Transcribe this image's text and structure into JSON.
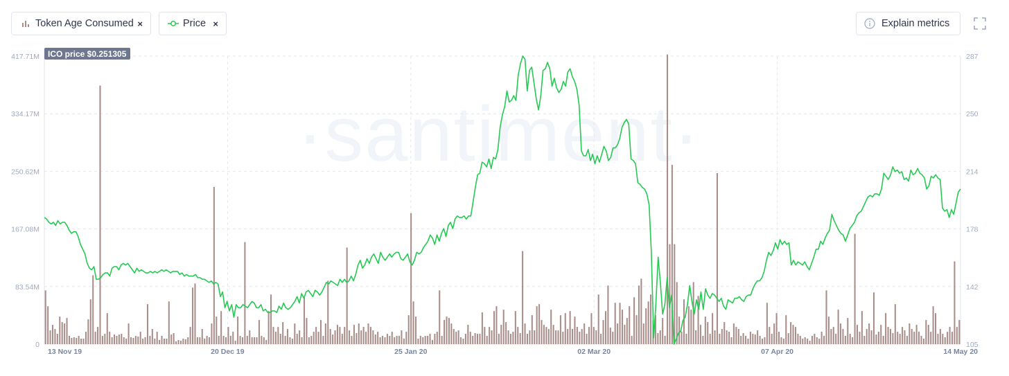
{
  "chips": [
    {
      "label": "Token Age Consumed",
      "icon": "bar-chart-icon",
      "color": "#a88d89"
    },
    {
      "label": "Price",
      "icon": "line-dot-icon",
      "color": "#26c953"
    }
  ],
  "remove_symbol": "×",
  "explain_button": {
    "label": "Explain metrics",
    "icon": "info-icon"
  },
  "fullscreen_icon": "fullscreen-icon",
  "watermark": "·santiment·",
  "ico_label": "ICO price $0.251305",
  "colors": {
    "bars": "#a88d89",
    "line": "#26c953",
    "grid": "#e4e8ef",
    "badge": "#6e7690"
  },
  "chart_data": {
    "type": "bar+line",
    "x_ticks": [
      "13 Nov 19",
      "20 Dec 19",
      "25 Jan 20",
      "02 Mar 20",
      "07 Apr 20",
      "14 May 20"
    ],
    "y_left_ticks": [
      "0",
      "83.54M",
      "167.08M",
      "250.62M",
      "334.17M",
      "417.71M"
    ],
    "y_right_ticks": [
      "105",
      "142",
      "178",
      "214",
      "250",
      "287"
    ],
    "y_left_range": [
      0,
      417.71
    ],
    "y_right_range": [
      105,
      287
    ],
    "grid": true,
    "series": [
      {
        "name": "Token Age Consumed",
        "type": "bar",
        "axis": "left",
        "unit": "M",
        "values": [
          78,
          55,
          20,
          28,
          22,
          15,
          40,
          32,
          30,
          38,
          12,
          9,
          10,
          9,
          12,
          8,
          8,
          18,
          36,
          65,
          100,
          18,
          25,
          375,
          12,
          15,
          45,
          18,
          10,
          14,
          12,
          14,
          15,
          10,
          8,
          30,
          10,
          9,
          12,
          11,
          18,
          8,
          10,
          58,
          12,
          22,
          8,
          18,
          6,
          12,
          8,
          8,
          62,
          14,
          16,
          4,
          6,
          5,
          8,
          7,
          10,
          25,
          82,
          88,
          10,
          10,
          22,
          8,
          12,
          10,
          30,
          228,
          40,
          12,
          48,
          12,
          10,
          25,
          12,
          18,
          5,
          40,
          12,
          10,
          148,
          12,
          20,
          10,
          10,
          10,
          35,
          12,
          10,
          6,
          48,
          72,
          25,
          18,
          25,
          15,
          32,
          12,
          22,
          10,
          8,
          30,
          15,
          20,
          10,
          68,
          38,
          10,
          12,
          18,
          25,
          18,
          35,
          12,
          30,
          92,
          22,
          14,
          20,
          28,
          25,
          15,
          25,
          140,
          20,
          12,
          28,
          16,
          30,
          20,
          25,
          18,
          30,
          25,
          20,
          14,
          18,
          10,
          12,
          10,
          15,
          12,
          18,
          10,
          12,
          12,
          20,
          8,
          18,
          42,
          190,
          62,
          40,
          8,
          12,
          10,
          12,
          12,
          15,
          6,
          15,
          18,
          78,
          12,
          35,
          40,
          38,
          30,
          22,
          18,
          20,
          10,
          8,
          15,
          28,
          18,
          12,
          16,
          15,
          15,
          46,
          25,
          12,
          25,
          20,
          48,
          55,
          15,
          28,
          50,
          32,
          20,
          15,
          18,
          48,
          25,
          16,
          135,
          30,
          15,
          20,
          42,
          20,
          55,
          58,
          35,
          28,
          25,
          22,
          50,
          28,
          20,
          20,
          42,
          18,
          45,
          22,
          48,
          22,
          40,
          25,
          18,
          22,
          30,
          15,
          25,
          45,
          25,
          20,
          72,
          15,
          35,
          48,
          85,
          24,
          18,
          60,
          30,
          60,
          50,
          28,
          38,
          55,
          12,
          68,
          42,
          85,
          95,
          30,
          52,
          62,
          72,
          35,
          42,
          16,
          20,
          38,
          12,
          420,
          145,
          260,
          145,
          90,
          40,
          18,
          65,
          15,
          55,
          50,
          90,
          20,
          70,
          28,
          12,
          40,
          32,
          15,
          45,
          20,
          248,
          15,
          22,
          32,
          20,
          18,
          10,
          30,
          25,
          22,
          12,
          16,
          12,
          8,
          18,
          15,
          14,
          20,
          12,
          8,
          10,
          60,
          25,
          15,
          30,
          45,
          18,
          10,
          8,
          42,
          16,
          32,
          28,
          25,
          15,
          12,
          8,
          10,
          8,
          5,
          12,
          15,
          10,
          8,
          18,
          12,
          78,
          40,
          22,
          25,
          15,
          50,
          30,
          22,
          12,
          38,
          15,
          10,
          160,
          28,
          18,
          48,
          12,
          22,
          30,
          20,
          75,
          14,
          18,
          28,
          12,
          45,
          25,
          22,
          16,
          58,
          18,
          15,
          25,
          20,
          12,
          30,
          22,
          18,
          28,
          18,
          12,
          8,
          35,
          28,
          18,
          55,
          45,
          15,
          22,
          15,
          10,
          18,
          25,
          18,
          120,
          25,
          35
        ]
      },
      {
        "name": "Price",
        "type": "line",
        "axis": "right",
        "unit": "USD",
        "values": [
          185,
          184,
          182,
          181,
          182,
          180,
          183,
          181,
          182,
          182,
          180,
          177,
          175,
          176,
          176,
          173,
          168,
          165,
          162,
          156,
          153,
          152,
          154,
          146,
          146,
          147,
          149,
          150,
          150,
          148,
          153,
          154,
          154,
          152,
          155,
          156,
          155,
          156,
          154,
          152,
          150,
          153,
          151,
          152,
          151,
          150,
          150,
          151,
          150,
          151,
          150,
          151,
          152,
          151,
          152,
          151,
          150,
          151,
          151,
          151,
          149,
          150,
          148,
          149,
          148,
          148,
          148,
          149,
          147,
          147,
          146,
          146,
          145,
          144,
          145,
          143,
          144,
          143,
          135,
          138,
          128,
          132,
          126,
          130,
          122,
          130,
          128,
          128,
          130,
          129,
          128,
          130,
          132,
          131,
          128,
          128,
          130,
          126,
          127,
          125,
          125,
          126,
          126,
          125,
          129,
          127,
          131,
          128,
          127,
          128,
          130,
          132,
          135,
          131,
          137,
          134,
          138,
          139,
          137,
          135,
          139,
          138,
          136,
          138,
          141,
          144,
          143,
          145,
          144,
          143,
          142,
          146,
          144,
          146,
          144,
          145,
          148,
          145,
          149,
          155,
          158,
          153,
          155,
          159,
          156,
          160,
          162,
          159,
          156,
          163,
          160,
          158,
          160,
          162,
          160,
          162,
          163,
          163,
          159,
          158,
          160,
          162,
          157,
          155,
          158,
          163,
          162,
          163,
          166,
          168,
          170,
          174,
          172,
          168,
          174,
          170,
          175,
          178,
          173,
          180,
          182,
          178,
          184,
          186,
          185,
          185,
          186,
          184,
          186,
          186,
          195,
          204,
          212,
          213,
          220,
          219,
          217,
          222,
          216,
          223,
          222,
          228,
          242,
          250,
          255,
          265,
          258,
          259,
          262,
          259,
          275,
          282,
          287,
          285,
          265,
          278,
          280,
          270,
          260,
          253,
          262,
          278,
          279,
          283,
          279,
          268,
          273,
          267,
          264,
          266,
          271,
          268,
          277,
          279,
          274,
          271,
          266,
          256,
          227,
          224,
          224,
          228,
          221,
          225,
          219,
          224,
          220,
          225,
          230,
          227,
          221,
          223,
          229,
          229,
          231,
          235,
          242,
          245,
          247,
          244,
          222,
          221,
          219,
          207,
          206,
          204,
          203,
          200,
          193,
          163,
          109,
          130,
          160,
          144,
          124,
          130,
          147,
          128,
          136,
          105,
          108,
          112,
          113,
          120,
          122,
          130,
          142,
          132,
          124,
          133,
          127,
          138,
          127,
          140,
          136,
          134,
          137,
          136,
          134,
          132,
          134,
          129,
          127,
          133,
          132,
          131,
          134,
          134,
          135,
          133,
          132,
          135,
          136,
          136,
          140,
          143,
          145,
          145,
          147,
          151,
          158,
          163,
          161,
          164,
          169,
          165,
          171,
          168,
          170,
          168,
          169,
          155,
          158,
          155,
          157,
          156,
          155,
          157,
          154,
          152,
          156,
          160,
          165,
          165,
          170,
          168,
          172,
          175,
          177,
          187,
          183,
          180,
          177,
          175,
          174,
          170,
          174,
          178,
          180,
          182,
          186,
          188,
          189,
          192,
          195,
          198,
          199,
          198,
          200,
          200,
          199,
          203,
          213,
          211,
          209,
          212,
          217,
          214,
          215,
          213,
          214,
          209,
          210,
          208,
          215,
          212,
          213,
          216,
          213,
          212,
          210,
          203,
          205,
          211,
          210,
          212,
          210,
          209,
          191,
          189,
          190,
          185,
          190,
          187,
          194,
          201,
          203
        ]
      }
    ]
  }
}
